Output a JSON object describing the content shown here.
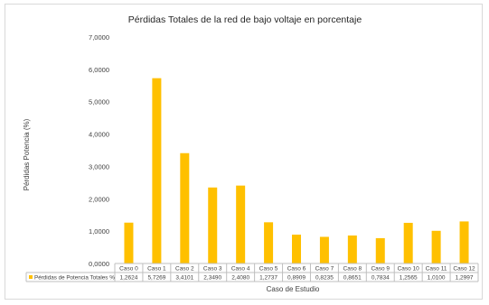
{
  "chart_data": {
    "type": "bar",
    "title": "Pérdidas Totales de la red de bajo voltaje en porcentaje",
    "xlabel": "Caso de Estudio",
    "ylabel": "Pérdidas Potencia (%)",
    "ylim": [
      0,
      7
    ],
    "yticks": [
      0,
      1,
      2,
      3,
      4,
      5,
      6,
      7
    ],
    "ytick_labels": [
      "0,0000",
      "1,0000",
      "2,0000",
      "3,0000",
      "4,0000",
      "5,0000",
      "6,0000",
      "7,0000"
    ],
    "grid": false,
    "legend_placement": "data-table",
    "categories": [
      "Caso 0",
      "Caso 1",
      "Caso 2",
      "Caso 3",
      "Caso 4",
      "Caso 5",
      "Caso 6",
      "Caso 7",
      "Caso 8",
      "Caso 9",
      "Caso 10",
      "Caso 11",
      "Caso 12"
    ],
    "series": [
      {
        "name": "Pérdidas de Potencia Totales %",
        "color": "#ffc000",
        "values": [
          1.2624,
          5.7269,
          3.4101,
          2.349,
          2.408,
          1.2737,
          0.8909,
          0.8235,
          0.8651,
          0.7834,
          1.2565,
          1.01,
          1.2997
        ],
        "value_labels": [
          "1,2624",
          "5,7269",
          "3,4101",
          "2,3490",
          "2,4080",
          "1,2737",
          "0,8909",
          "0,8235",
          "0,8651",
          "0,7834",
          "1,2565",
          "1,0100",
          "1,2997"
        ]
      }
    ]
  }
}
